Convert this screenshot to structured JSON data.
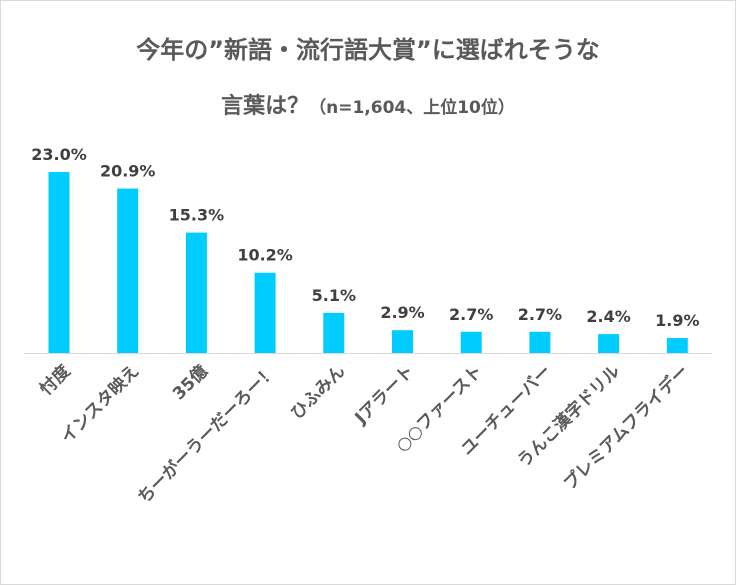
{
  "chart_data": {
    "type": "bar",
    "title_line1": "今年の”新語・流行語大賞”に選ばれそうな",
    "title_line2": "言葉は？",
    "subtitle": "（n=1,604、上位10位）",
    "categories": [
      "忖度",
      "インスタ映え",
      "35億",
      "ちーがーうーだーろー！",
      "ひふみん",
      "Jアラート",
      "○○ファースト",
      "ユーチューバー",
      "うんこ漢字ドリル",
      "プレミアムフライデー"
    ],
    "values": [
      23.0,
      20.9,
      15.3,
      10.2,
      5.1,
      2.9,
      2.7,
      2.7,
      2.4,
      1.9
    ],
    "data_labels": [
      "23.0%",
      "20.9%",
      "15.3%",
      "10.2%",
      "5.1%",
      "2.9%",
      "2.7%",
      "2.7%",
      "2.4%",
      "1.9%"
    ],
    "unit": "%",
    "grid": false,
    "legend": "none",
    "bar_color": "#00CCFF"
  }
}
